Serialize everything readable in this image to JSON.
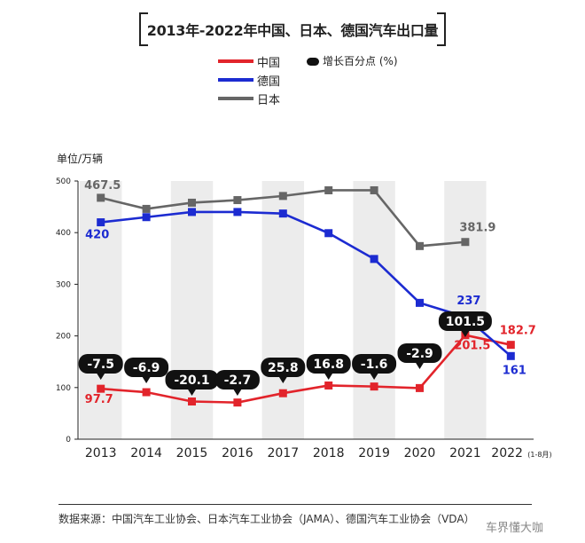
{
  "title": "2013年-2022年中国、日本、德国汽车出口量",
  "legend": {
    "series": [
      {
        "name": "中国",
        "color": "#e2242b"
      },
      {
        "name": "德国",
        "color": "#1c2bd1"
      },
      {
        "name": "日本",
        "color": "#666666"
      }
    ],
    "bubble_note": "增长百分点 (%)"
  },
  "unit_label": "单位/万辆",
  "source": "数据来源：中国汽车工业协会、日本汽车工业协会（JAMA）、德国汽车工业协会（VDA）",
  "watermark": "车界懂大咖",
  "chart_data": {
    "type": "line",
    "categories": [
      "2013",
      "2014",
      "2015",
      "2016",
      "2017",
      "2018",
      "2019",
      "2020",
      "2021",
      "2022"
    ],
    "category_note": {
      "2022": "(1-8月)"
    },
    "ylim": [
      0,
      500
    ],
    "yticks": [
      0,
      100,
      200,
      300,
      400,
      500
    ],
    "grid": false,
    "shaded_columns": [
      "2013",
      "2015",
      "2017",
      "2019",
      "2021"
    ],
    "series": [
      {
        "name": "中国",
        "color": "#e2242b",
        "values": [
          97.7,
          91,
          73,
          71,
          89,
          104,
          102,
          99,
          201.5,
          182.7
        ],
        "value_labels": {
          "0": "97.7",
          "8": "201.5",
          "9": "182.7"
        },
        "growth_bubbles": [
          "-7.5",
          "-6.9",
          "-20.1",
          "-2.7",
          "25.8",
          "16.8",
          "-1.6",
          "-2.9",
          "101.5"
        ]
      },
      {
        "name": "德国",
        "color": "#1c2bd1",
        "values": [
          420,
          430,
          440,
          440,
          437,
          399,
          349,
          264,
          237,
          161
        ],
        "value_labels": {
          "0": "420",
          "8": "237",
          "9": "161"
        }
      },
      {
        "name": "日本",
        "color": "#666666",
        "values": [
          467.5,
          446,
          458,
          463,
          471,
          482,
          482,
          374,
          381.9,
          null
        ],
        "value_labels": {
          "0": "467.5",
          "8": "381.9"
        }
      }
    ]
  }
}
